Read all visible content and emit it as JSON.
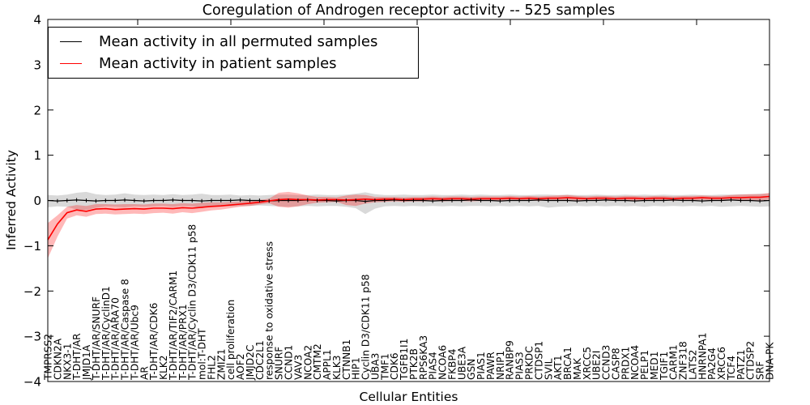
{
  "title": "Coregulation of Androgen receptor activity -- 525 samples",
  "legend": {
    "items": [
      {
        "label": "Mean activity in all permuted samples",
        "color": "#000000"
      },
      {
        "label": "Mean activity in patient samples",
        "color": "#ff0000"
      }
    ]
  },
  "chart_data": {
    "type": "line",
    "title": "Coregulation of Androgen receptor activity -- 525 samples",
    "xlabel": "Cellular Entities",
    "ylabel": "Inferred Activity",
    "ylim": [
      -4,
      4
    ],
    "yticks": [
      -4,
      -3,
      -2,
      -1,
      0,
      1,
      2,
      3,
      4
    ],
    "grid": false,
    "legend_position": "upper left",
    "categories": [
      "TMPRSS2",
      "CDKN2A",
      "NKX3-1",
      "T-DHT/AR",
      "JMJD1A",
      "T-DHT/AR/SNURF",
      "T-DHT/AR/CyclinD1",
      "T-DHT/AR/ARA70",
      "T-DHT/AR/Caspase 8",
      "T-DHT/AR/Ubc9",
      "AR",
      "T-DHT/AR/CDK6",
      "KLK2",
      "T-DHT/AR/TIF2/CARM1",
      "T-DHT/AR/PRX1",
      "T-DHT/AR/Cyclin D3/CDK11 p58",
      "mol:T-DHT",
      "FHL2",
      "ZMIZ1",
      "cell proliferation",
      "AOF2",
      "JMJD2C",
      "CDC2L1",
      "response to oxidative stress",
      "SNURF",
      "CCND1",
      "VAV3",
      "NCOA2",
      "CMTM2",
      "APPL1",
      "KLK3",
      "CTNNB1",
      "HIP1",
      "Cyclin D3/CDK11 p58",
      "UBA3",
      "TMF1",
      "CDK6",
      "TGFB1I1",
      "PTK2B",
      "RPS6KA3",
      "PIAS4",
      "NCOA6",
      "FKBP4",
      "UBE3A",
      "GSN",
      "PIAS1",
      "PAWR",
      "NRIP1",
      "RANBP9",
      "PIAS3",
      "PRKDC",
      "CTDSP1",
      "SVIL",
      "AKT1",
      "BRCA1",
      "MAK",
      "XRCC5",
      "UBE2I",
      "CCND3",
      "CASP8",
      "PRDX1",
      "NCOA4",
      "PELP1",
      "MED1",
      "TGIF1",
      "CARM1",
      "ZNF318",
      "LATS2",
      "HNRNPA1",
      "PA2G4",
      "XRCC6",
      "TCF4",
      "PATZ1",
      "CTDSP2",
      "SRF",
      "DNA-PK"
    ],
    "series": [
      {
        "key": "permuted",
        "name": "Mean activity in all permuted samples",
        "color": "#000000",
        "band_color": "rgba(0,0,0,0.15)",
        "values": [
          0,
          -0.01,
          0,
          0.01,
          0,
          -0.01,
          0,
          0,
          0.01,
          0,
          -0.01,
          0,
          0,
          0.01,
          0,
          0,
          -0.01,
          0,
          0,
          0,
          0.01,
          0,
          0,
          -0.01,
          0,
          0,
          0,
          0.01,
          0,
          0,
          -0.01,
          0,
          0,
          -0.02,
          0,
          0,
          0.01,
          0,
          0,
          0,
          -0.01,
          0,
          0,
          0,
          0.01,
          0,
          0,
          -0.01,
          0,
          0,
          0,
          0.01,
          0,
          0,
          0,
          -0.01,
          0,
          0,
          0.01,
          0,
          0,
          -0.01,
          0,
          0,
          0,
          0.01,
          0,
          0,
          -0.01,
          0,
          0,
          0.01,
          0,
          0,
          -0.01,
          0
        ],
        "band_upper": [
          0.12,
          0.11,
          0.13,
          0.17,
          0.19,
          0.14,
          0.12,
          0.13,
          0.16,
          0.13,
          0.12,
          0.13,
          0.12,
          0.14,
          0.12,
          0.13,
          0.15,
          0.12,
          0.12,
          0.13,
          0.11,
          0.12,
          0.11,
          0.12,
          0.13,
          0.13,
          0.12,
          0.12,
          0.13,
          0.12,
          0.12,
          0.13,
          0.15,
          0.18,
          0.14,
          0.12,
          0.12,
          0.13,
          0.12,
          0.12,
          0.13,
          0.12,
          0.12,
          0.13,
          0.12,
          0.13,
          0.12,
          0.12,
          0.13,
          0.12,
          0.12,
          0.13,
          0.13,
          0.12,
          0.13,
          0.12,
          0.12,
          0.13,
          0.12,
          0.12,
          0.13,
          0.12,
          0.13,
          0.12,
          0.13,
          0.12,
          0.12,
          0.13,
          0.12,
          0.12,
          0.13,
          0.13,
          0.14,
          0.14,
          0.15,
          0.15
        ],
        "band_lower": [
          -0.15,
          -0.13,
          -0.14,
          -0.2,
          -0.21,
          -0.16,
          -0.13,
          -0.14,
          -0.15,
          -0.13,
          -0.14,
          -0.13,
          -0.12,
          -0.14,
          -0.12,
          -0.13,
          -0.17,
          -0.13,
          -0.12,
          -0.13,
          -0.12,
          -0.12,
          -0.11,
          -0.12,
          -0.13,
          -0.14,
          -0.13,
          -0.12,
          -0.13,
          -0.12,
          -0.12,
          -0.14,
          -0.17,
          -0.3,
          -0.18,
          -0.13,
          -0.12,
          -0.13,
          -0.12,
          -0.13,
          -0.12,
          -0.13,
          -0.12,
          -0.13,
          -0.12,
          -0.12,
          -0.13,
          -0.12,
          -0.13,
          -0.12,
          -0.13,
          -0.12,
          -0.16,
          -0.14,
          -0.13,
          -0.12,
          -0.13,
          -0.12,
          -0.13,
          -0.12,
          -0.13,
          -0.12,
          -0.14,
          -0.12,
          -0.13,
          -0.12,
          -0.13,
          -0.12,
          -0.13,
          -0.12,
          -0.14,
          -0.13,
          -0.12,
          -0.13,
          -0.14,
          -0.13
        ]
      },
      {
        "key": "patient",
        "name": "Mean activity in patient samples",
        "color": "#ff0000",
        "band_color": "rgba(255,0,0,0.28)",
        "values": [
          -0.87,
          -0.52,
          -0.27,
          -0.21,
          -0.24,
          -0.19,
          -0.18,
          -0.2,
          -0.19,
          -0.18,
          -0.19,
          -0.17,
          -0.17,
          -0.18,
          -0.16,
          -0.17,
          -0.15,
          -0.13,
          -0.12,
          -0.1,
          -0.08,
          -0.06,
          -0.04,
          -0.01,
          0.02,
          0.03,
          0.02,
          0.02,
          0.01,
          0.02,
          0.02,
          0.01,
          0.02,
          0.03,
          0.02,
          0.03,
          0.03,
          0.02,
          0.03,
          0.03,
          0.04,
          0.03,
          0.04,
          0.04,
          0.03,
          0.04,
          0.04,
          0.04,
          0.05,
          0.04,
          0.05,
          0.04,
          0.05,
          0.05,
          0.06,
          0.05,
          0.04,
          0.05,
          0.05,
          0.04,
          0.05,
          0.05,
          0.04,
          0.05,
          0.05,
          0.04,
          0.05,
          0.05,
          0.06,
          0.05,
          0.05,
          0.06,
          0.06,
          0.07,
          0.07,
          0.09
        ],
        "band_upper": [
          -0.5,
          -0.33,
          -0.14,
          -0.1,
          -0.12,
          -0.08,
          -0.08,
          -0.09,
          -0.08,
          -0.08,
          -0.09,
          -0.07,
          -0.07,
          -0.08,
          -0.06,
          -0.07,
          -0.05,
          -0.04,
          -0.04,
          -0.03,
          -0.02,
          0.0,
          0.01,
          0.04,
          0.17,
          0.19,
          0.16,
          0.11,
          0.08,
          0.08,
          0.07,
          0.11,
          0.13,
          0.12,
          0.08,
          0.08,
          0.08,
          0.07,
          0.08,
          0.08,
          0.09,
          0.08,
          0.09,
          0.09,
          0.08,
          0.09,
          0.09,
          0.09,
          0.1,
          0.09,
          0.1,
          0.09,
          0.1,
          0.11,
          0.12,
          0.1,
          0.09,
          0.1,
          0.1,
          0.09,
          0.1,
          0.1,
          0.09,
          0.1,
          0.1,
          0.09,
          0.1,
          0.1,
          0.11,
          0.1,
          0.1,
          0.12,
          0.13,
          0.14,
          0.14,
          0.17
        ],
        "band_lower": [
          -1.28,
          -0.8,
          -0.4,
          -0.33,
          -0.36,
          -0.3,
          -0.29,
          -0.31,
          -0.3,
          -0.29,
          -0.3,
          -0.28,
          -0.27,
          -0.29,
          -0.26,
          -0.28,
          -0.25,
          -0.22,
          -0.2,
          -0.17,
          -0.14,
          -0.12,
          -0.09,
          -0.06,
          -0.14,
          -0.16,
          -0.13,
          -0.08,
          -0.05,
          -0.04,
          -0.03,
          -0.1,
          -0.12,
          -0.07,
          -0.04,
          -0.03,
          -0.02,
          -0.03,
          -0.02,
          -0.02,
          -0.01,
          -0.02,
          -0.01,
          -0.01,
          -0.02,
          -0.01,
          -0.01,
          -0.01,
          0.0,
          -0.01,
          0.0,
          -0.01,
          0.0,
          0.0,
          0.01,
          0.0,
          -0.01,
          0.0,
          0.0,
          -0.01,
          0.0,
          0.0,
          -0.01,
          0.0,
          0.0,
          -0.01,
          0.0,
          0.0,
          0.01,
          0.0,
          0.0,
          0.0,
          0.0,
          0.01,
          0.0,
          0.02
        ]
      }
    ]
  }
}
